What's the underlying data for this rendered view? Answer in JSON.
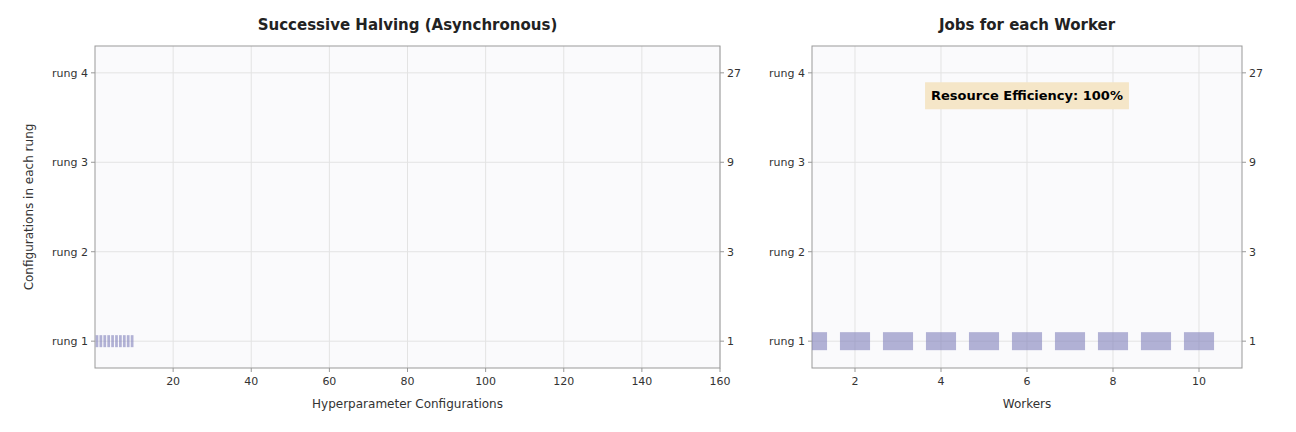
{
  "chart_data": [
    {
      "type": "bar",
      "title": "Successive Halving (Asynchronous)",
      "x_label": "Hyperparameter Configurations",
      "y_label": "Configurations in each rung",
      "x": [
        0.5,
        1.5,
        2.5,
        3.5,
        4.5,
        5.5,
        6.5,
        7.5,
        8.5,
        9.5
      ],
      "values": [
        1,
        1,
        1,
        1,
        1,
        1,
        1,
        1,
        1,
        1
      ],
      "color": "#8080bb",
      "log": "y",
      "xlim": [
        0,
        160
      ],
      "xticks": [
        20,
        40,
        60,
        80,
        100,
        120,
        140,
        160
      ],
      "ylim": [
        0.719223,
        37.5405
      ],
      "yticks": [
        {
          "value": 1,
          "label": "rung 1"
        },
        {
          "value": 3,
          "label": "rung 2"
        },
        {
          "value": 9,
          "label": "rung 3"
        },
        {
          "value": 27,
          "label": "rung 4"
        }
      ],
      "y2lim": [
        0.719223,
        37.5405
      ],
      "y2ticks": [
        1,
        3,
        9,
        27
      ],
      "grid": true
    },
    {
      "type": "bar",
      "title": "Jobs for each Worker",
      "x_label": "Workers",
      "x": [
        1,
        2,
        3,
        4,
        5,
        6,
        7,
        8,
        9,
        10
      ],
      "values": [
        1,
        1,
        1,
        1,
        1,
        1,
        1,
        1,
        1,
        1
      ],
      "color": "#8080bb",
      "log": "y",
      "xlim": [
        1,
        11
      ],
      "xticks": [
        2,
        4,
        6,
        8,
        10
      ],
      "ylim": [
        0.719223,
        37.5405
      ],
      "yticks": [
        {
          "value": 1,
          "label": "rung 1"
        },
        {
          "value": 3,
          "label": "rung 2"
        },
        {
          "value": 9,
          "label": "rung 3"
        },
        {
          "value": 27,
          "label": "rung 4"
        }
      ],
      "y2lim": [
        0.719223,
        37.5405
      ],
      "y2ticks": [
        1,
        3,
        9,
        27
      ],
      "grid": true,
      "annotation": "Resource Efficiency: 100%"
    }
  ]
}
